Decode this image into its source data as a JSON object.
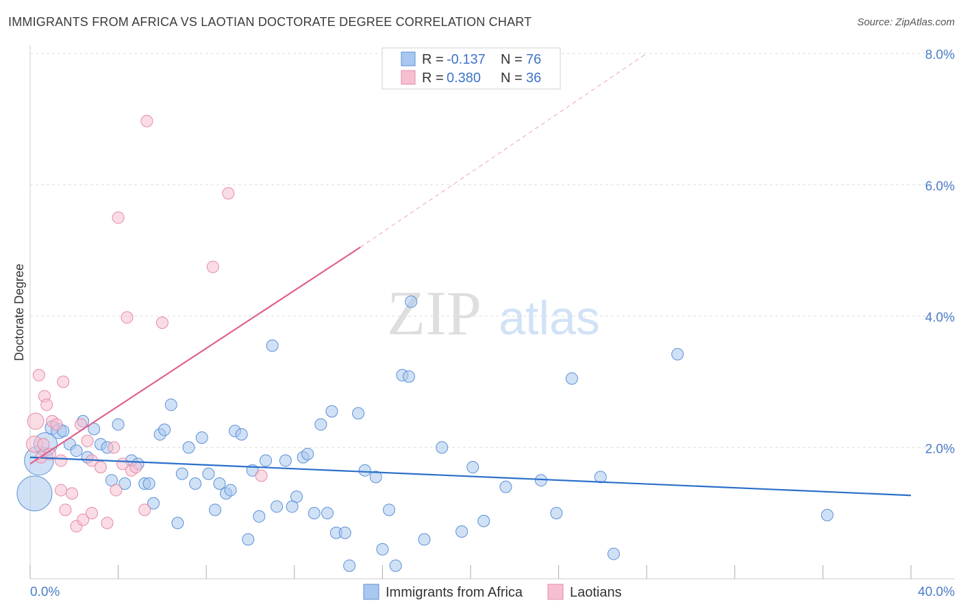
{
  "title": "IMMIGRANTS FROM AFRICA VS LAOTIAN DOCTORATE DEGREE CORRELATION CHART",
  "source": "Source: ZipAtlas.com",
  "watermark": {
    "zip": "ZIP",
    "atlas": "atlas"
  },
  "colors": {
    "blue_fill": "#aac8ef",
    "blue_stroke": "#5b8fd6",
    "blue_line": "#2a6fca",
    "pink_fill": "#f6c0d0",
    "pink_stroke": "#e58aa8",
    "pink_line": "#e06090",
    "grid": "#dddddd",
    "axis_text": "#4a7cc7"
  },
  "legend": {
    "rows": [
      {
        "r_label": "R =",
        "r_value": "-0.137",
        "n_label": "N =",
        "n_value": "76",
        "series": "blue"
      },
      {
        "r_label": "R =",
        "r_value": "0.380",
        "n_label": "N =",
        "n_value": "36",
        "series": "pink"
      }
    ]
  },
  "chart_data": {
    "type": "scatter",
    "title": "IMMIGRANTS FROM AFRICA VS LAOTIAN DOCTORATE DEGREE CORRELATION CHART",
    "xlabel": "",
    "ylabel": "Doctorate Degree",
    "xlim": [
      0,
      40
    ],
    "ylim": [
      0,
      8
    ],
    "x_tick_labels": [
      {
        "value": 0,
        "label": "0.0%"
      },
      {
        "value": 40,
        "label": "40.0%"
      }
    ],
    "y_tick_labels": [
      {
        "value": 2,
        "label": "2.0%"
      },
      {
        "value": 4,
        "label": "4.0%"
      },
      {
        "value": 6,
        "label": "6.0%"
      },
      {
        "value": 8,
        "label": "8.0%"
      }
    ],
    "x_minor_ticks": [
      0,
      4,
      8,
      12,
      16,
      20,
      24,
      28,
      32,
      36,
      40
    ],
    "series": [
      {
        "name": "Immigrants from Africa",
        "color_key": "blue",
        "trend": {
          "x": [
            0,
            40
          ],
          "y": [
            1.85,
            1.27
          ],
          "dashed_extension": false
        },
        "points": [
          {
            "x": 0.2,
            "y": 1.3,
            "s": 3
          },
          {
            "x": 0.4,
            "y": 1.8,
            "s": 2.5
          },
          {
            "x": 0.7,
            "y": 2.05,
            "s": 2
          },
          {
            "x": 1.0,
            "y": 2.3,
            "s": 1.2
          },
          {
            "x": 1.3,
            "y": 2.25,
            "s": 1.3
          },
          {
            "x": 1.5,
            "y": 2.25,
            "s": 1
          },
          {
            "x": 1.8,
            "y": 2.05,
            "s": 1
          },
          {
            "x": 2.1,
            "y": 1.95,
            "s": 1
          },
          {
            "x": 2.4,
            "y": 2.4,
            "s": 1
          },
          {
            "x": 2.6,
            "y": 1.85,
            "s": 1
          },
          {
            "x": 2.9,
            "y": 2.28,
            "s": 1
          },
          {
            "x": 3.2,
            "y": 2.05,
            "s": 1
          },
          {
            "x": 3.5,
            "y": 2.0,
            "s": 1
          },
          {
            "x": 3.7,
            "y": 1.5,
            "s": 1
          },
          {
            "x": 4.0,
            "y": 2.35,
            "s": 1
          },
          {
            "x": 4.3,
            "y": 1.45,
            "s": 1
          },
          {
            "x": 4.6,
            "y": 1.8,
            "s": 1
          },
          {
            "x": 4.9,
            "y": 1.75,
            "s": 1
          },
          {
            "x": 5.2,
            "y": 1.45,
            "s": 1
          },
          {
            "x": 5.4,
            "y": 1.45,
            "s": 1
          },
          {
            "x": 5.6,
            "y": 1.15,
            "s": 1
          },
          {
            "x": 5.9,
            "y": 2.2,
            "s": 1
          },
          {
            "x": 6.1,
            "y": 2.27,
            "s": 1
          },
          {
            "x": 6.4,
            "y": 2.65,
            "s": 1
          },
          {
            "x": 6.7,
            "y": 0.85,
            "s": 1
          },
          {
            "x": 6.9,
            "y": 1.6,
            "s": 1
          },
          {
            "x": 7.2,
            "y": 2.0,
            "s": 1
          },
          {
            "x": 7.5,
            "y": 1.45,
            "s": 1
          },
          {
            "x": 7.8,
            "y": 2.15,
            "s": 1
          },
          {
            "x": 8.1,
            "y": 1.6,
            "s": 1
          },
          {
            "x": 8.4,
            "y": 1.05,
            "s": 1
          },
          {
            "x": 8.6,
            "y": 1.45,
            "s": 1
          },
          {
            "x": 8.9,
            "y": 1.3,
            "s": 1
          },
          {
            "x": 9.1,
            "y": 1.35,
            "s": 1
          },
          {
            "x": 9.3,
            "y": 2.25,
            "s": 1
          },
          {
            "x": 9.6,
            "y": 2.2,
            "s": 1
          },
          {
            "x": 9.9,
            "y": 0.6,
            "s": 1
          },
          {
            "x": 10.1,
            "y": 1.65,
            "s": 1
          },
          {
            "x": 10.4,
            "y": 0.95,
            "s": 1
          },
          {
            "x": 10.7,
            "y": 1.8,
            "s": 1
          },
          {
            "x": 11.0,
            "y": 3.55,
            "s": 1
          },
          {
            "x": 11.2,
            "y": 1.1,
            "s": 1
          },
          {
            "x": 11.6,
            "y": 1.8,
            "s": 1
          },
          {
            "x": 11.9,
            "y": 1.1,
            "s": 1
          },
          {
            "x": 12.1,
            "y": 1.25,
            "s": 1
          },
          {
            "x": 12.4,
            "y": 1.85,
            "s": 1
          },
          {
            "x": 12.6,
            "y": 1.9,
            "s": 1
          },
          {
            "x": 12.9,
            "y": 1.0,
            "s": 1
          },
          {
            "x": 13.2,
            "y": 2.35,
            "s": 1
          },
          {
            "x": 13.5,
            "y": 1.0,
            "s": 1
          },
          {
            "x": 13.7,
            "y": 2.55,
            "s": 1
          },
          {
            "x": 13.9,
            "y": 0.7,
            "s": 1
          },
          {
            "x": 14.3,
            "y": 0.7,
            "s": 1
          },
          {
            "x": 14.5,
            "y": 0.2,
            "s": 1
          },
          {
            "x": 14.9,
            "y": 2.52,
            "s": 1
          },
          {
            "x": 15.2,
            "y": 1.65,
            "s": 1
          },
          {
            "x": 15.7,
            "y": 1.55,
            "s": 1
          },
          {
            "x": 16.0,
            "y": 0.45,
            "s": 1
          },
          {
            "x": 16.3,
            "y": 1.05,
            "s": 1
          },
          {
            "x": 16.6,
            "y": 0.2,
            "s": 1
          },
          {
            "x": 16.9,
            "y": 3.1,
            "s": 1
          },
          {
            "x": 17.2,
            "y": 3.08,
            "s": 1
          },
          {
            "x": 17.3,
            "y": 4.22,
            "s": 1
          },
          {
            "x": 17.9,
            "y": 0.6,
            "s": 1
          },
          {
            "x": 18.7,
            "y": 2.0,
            "s": 1
          },
          {
            "x": 19.6,
            "y": 0.72,
            "s": 1
          },
          {
            "x": 20.1,
            "y": 1.7,
            "s": 1
          },
          {
            "x": 20.6,
            "y": 0.88,
            "s": 1
          },
          {
            "x": 21.6,
            "y": 1.4,
            "s": 1
          },
          {
            "x": 23.2,
            "y": 1.5,
            "s": 1
          },
          {
            "x": 23.9,
            "y": 1.0,
            "s": 1
          },
          {
            "x": 24.6,
            "y": 3.05,
            "s": 1
          },
          {
            "x": 25.9,
            "y": 1.55,
            "s": 1
          },
          {
            "x": 26.5,
            "y": 0.38,
            "s": 1
          },
          {
            "x": 29.4,
            "y": 3.42,
            "s": 1
          },
          {
            "x": 36.2,
            "y": 0.97,
            "s": 1
          }
        ]
      },
      {
        "name": "Laotians",
        "color_key": "pink",
        "trend": {
          "x": [
            0,
            15
          ],
          "y": [
            1.75,
            5.05
          ],
          "dashed_to": {
            "x": 28,
            "y": 8.0
          }
        },
        "points": [
          {
            "x": 0.2,
            "y": 2.05,
            "s": 1.4
          },
          {
            "x": 0.25,
            "y": 2.4,
            "s": 1.4
          },
          {
            "x": 0.4,
            "y": 3.1,
            "s": 1
          },
          {
            "x": 0.5,
            "y": 1.85,
            "s": 1
          },
          {
            "x": 0.6,
            "y": 2.05,
            "s": 1
          },
          {
            "x": 0.65,
            "y": 2.78,
            "s": 1
          },
          {
            "x": 0.75,
            "y": 2.65,
            "s": 1
          },
          {
            "x": 0.9,
            "y": 1.9,
            "s": 1
          },
          {
            "x": 1.0,
            "y": 2.4,
            "s": 1
          },
          {
            "x": 1.2,
            "y": 2.35,
            "s": 1
          },
          {
            "x": 1.4,
            "y": 1.35,
            "s": 1
          },
          {
            "x": 1.4,
            "y": 1.8,
            "s": 1
          },
          {
            "x": 1.5,
            "y": 3.0,
            "s": 1
          },
          {
            "x": 1.6,
            "y": 1.05,
            "s": 1
          },
          {
            "x": 1.9,
            "y": 1.3,
            "s": 1
          },
          {
            "x": 2.1,
            "y": 0.8,
            "s": 1
          },
          {
            "x": 2.3,
            "y": 2.35,
            "s": 1
          },
          {
            "x": 2.4,
            "y": 0.9,
            "s": 1
          },
          {
            "x": 2.6,
            "y": 2.1,
            "s": 1
          },
          {
            "x": 2.8,
            "y": 1.8,
            "s": 1
          },
          {
            "x": 2.8,
            "y": 1.0,
            "s": 1
          },
          {
            "x": 3.2,
            "y": 1.7,
            "s": 1
          },
          {
            "x": 3.5,
            "y": 0.85,
            "s": 1
          },
          {
            "x": 3.8,
            "y": 2.0,
            "s": 1
          },
          {
            "x": 3.9,
            "y": 1.35,
            "s": 1
          },
          {
            "x": 4.0,
            "y": 5.5,
            "s": 1
          },
          {
            "x": 4.2,
            "y": 1.75,
            "s": 1
          },
          {
            "x": 4.4,
            "y": 3.98,
            "s": 1
          },
          {
            "x": 4.6,
            "y": 1.65,
            "s": 1
          },
          {
            "x": 4.8,
            "y": 1.7,
            "s": 1
          },
          {
            "x": 5.2,
            "y": 1.05,
            "s": 1
          },
          {
            "x": 5.3,
            "y": 6.97,
            "s": 1
          },
          {
            "x": 6.0,
            "y": 3.9,
            "s": 1
          },
          {
            "x": 8.3,
            "y": 4.75,
            "s": 1
          },
          {
            "x": 9.0,
            "y": 5.87,
            "s": 1
          },
          {
            "x": 10.5,
            "y": 1.57,
            "s": 1
          }
        ]
      }
    ],
    "legend_bottom": [
      "Immigrants from Africa",
      "Laotians"
    ]
  }
}
